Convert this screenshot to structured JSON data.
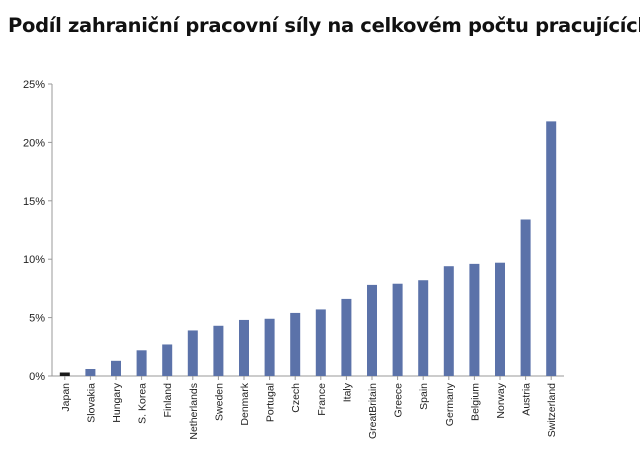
{
  "chart_data": {
    "type": "bar",
    "title": "Podíl zahraniční pracovní síly na celkovém počtu pracujících",
    "xlabel": "",
    "ylabel": "",
    "categories": [
      "Japan",
      "Slovakia",
      "Hungary",
      "S. Korea",
      "Finland",
      "Netherlands",
      "Sweden",
      "Denmark",
      "Portugal",
      "Czech",
      "France",
      "Italy",
      "GreatBritain",
      "Greece",
      "Spain",
      "Germany",
      "Belgium",
      "Norway",
      "Austria",
      "Switzerland"
    ],
    "values": [
      0.3,
      0.6,
      1.3,
      2.2,
      2.7,
      3.9,
      4.3,
      4.8,
      4.9,
      5.4,
      5.7,
      6.6,
      7.8,
      7.9,
      8.2,
      9.4,
      9.6,
      9.7,
      13.4,
      21.8
    ],
    "ylim": [
      0,
      25
    ],
    "yticks": [
      "0%",
      "5%",
      "10%",
      "15%",
      "20%",
      "25%"
    ],
    "grid": false,
    "colors": {
      "bar": "#5b72a9",
      "highlight": "#1a1a1a"
    },
    "highlight_category": "Japan"
  }
}
